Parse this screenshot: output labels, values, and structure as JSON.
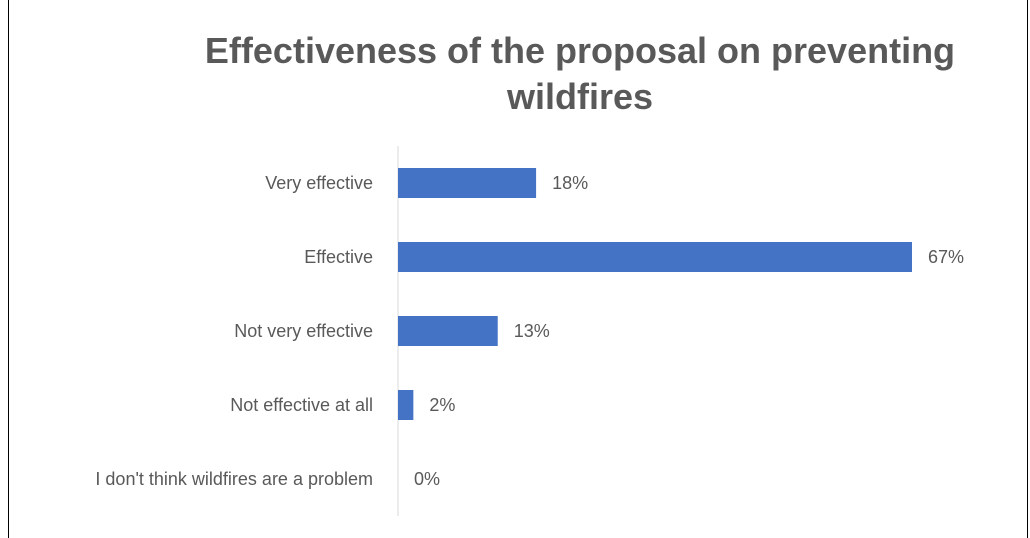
{
  "chart_data": {
    "type": "bar",
    "orientation": "horizontal",
    "title": "Effectiveness of the proposal on preventing wildfires",
    "categories": [
      "Very effective",
      "Effective",
      "Not very effective",
      "Not effective at all",
      "I don't think wildfires are a problem"
    ],
    "values": [
      18,
      67,
      13,
      2,
      0
    ],
    "data_labels": [
      "18%",
      "67%",
      "13%",
      "2%",
      "0%"
    ],
    "unit": "%",
    "xlim": [
      0,
      67
    ],
    "bar_color": "#4472C4",
    "label_color": "#595959",
    "axis_color": "#D9D9D9",
    "grid": false,
    "legend": "none"
  }
}
